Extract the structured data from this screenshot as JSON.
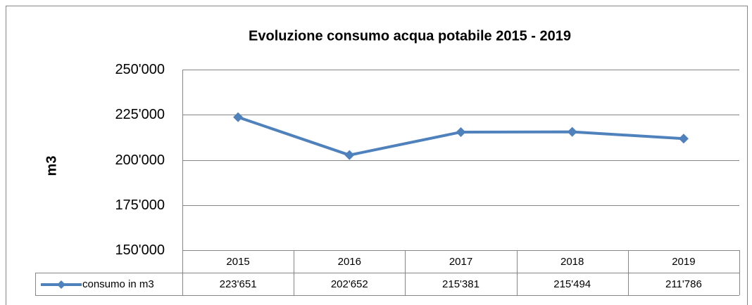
{
  "chart_data": {
    "type": "line",
    "title": "Evoluzione consumo acqua potabile 2015 - 2019",
    "y_label": "m3",
    "categories": [
      "2015",
      "2016",
      "2017",
      "2018",
      "2019"
    ],
    "series": [
      {
        "name": "consumo in m3",
        "color": "#4f81bd",
        "values": [
          223651,
          202652,
          215381,
          215494,
          211786
        ],
        "value_labels": [
          "223'651",
          "202'652",
          "215'381",
          "215'494",
          "211'786"
        ]
      }
    ],
    "ylim": [
      150000,
      250000
    ],
    "yticks": [
      {
        "value": 150000,
        "label": "150'000"
      },
      {
        "value": 175000,
        "label": "175'000"
      },
      {
        "value": 200000,
        "label": "200'000"
      },
      {
        "value": 225000,
        "label": "225'000"
      },
      {
        "value": 250000,
        "label": "250'000"
      }
    ],
    "grid": true,
    "data_table": true
  }
}
